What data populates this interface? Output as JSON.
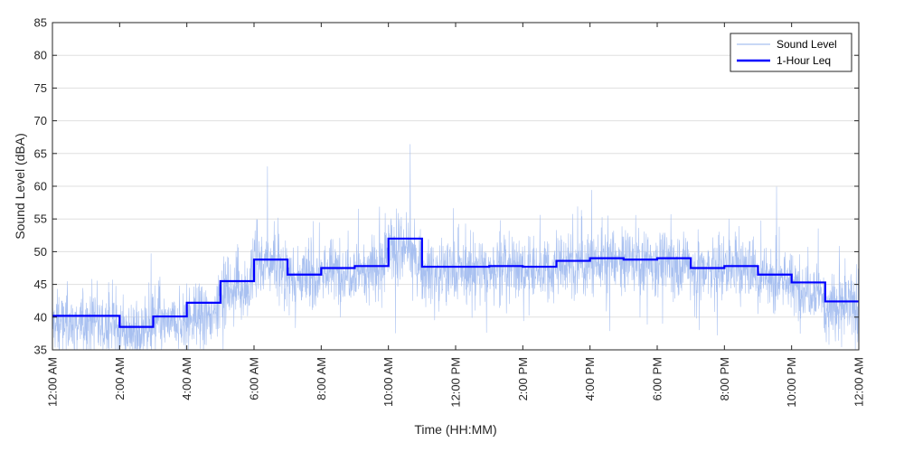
{
  "chart_data": {
    "type": "line",
    "title": "",
    "xlabel": "Time (HH:MM)",
    "ylabel": "Sound Level (dBA)",
    "ylim": [
      35,
      85
    ],
    "yticks": [
      35,
      40,
      45,
      50,
      55,
      60,
      65,
      70,
      75,
      80,
      85
    ],
    "xlim_hours": [
      0,
      24
    ],
    "xticks": [
      {
        "hour": 0,
        "label": "12:00 AM"
      },
      {
        "hour": 2,
        "label": "2:00 AM"
      },
      {
        "hour": 4,
        "label": "4:00 AM"
      },
      {
        "hour": 6,
        "label": "6:00 AM"
      },
      {
        "hour": 8,
        "label": "8:00 AM"
      },
      {
        "hour": 10,
        "label": "10:00 AM"
      },
      {
        "hour": 12,
        "label": "12:00 PM"
      },
      {
        "hour": 14,
        "label": "2:00 PM"
      },
      {
        "hour": 16,
        "label": "4:00 PM"
      },
      {
        "hour": 18,
        "label": "6:00 PM"
      },
      {
        "hour": 20,
        "label": "8:00 PM"
      },
      {
        "hour": 22,
        "label": "10:00 PM"
      },
      {
        "hour": 24,
        "label": "12:00 AM"
      }
    ],
    "grid": "horizontal",
    "legend": "top-right",
    "series": [
      {
        "name": "Sound Level",
        "color": "#a8c0f0",
        "style": "thin noisy line",
        "hourly_mean": [
          39,
          39,
          37.5,
          39,
          40,
          44,
          48,
          46,
          47,
          47.5,
          50,
          47,
          47,
          47.5,
          47,
          48,
          48.5,
          48.5,
          48.5,
          47,
          47.5,
          46,
          44.5,
          41.5
        ],
        "notable_peaks": [
          {
            "hour": 6.4,
            "value": 63
          },
          {
            "hour": 10.65,
            "value": 67
          },
          {
            "hour": 16.05,
            "value": 60
          },
          {
            "hour": 21.55,
            "value": 60.5
          }
        ]
      },
      {
        "name": "1-Hour Leq",
        "color": "#0000ff",
        "style": "step",
        "hours": [
          0,
          1,
          2,
          3,
          4,
          5,
          6,
          7,
          8,
          9,
          10,
          11,
          12,
          13,
          14,
          15,
          16,
          17,
          18,
          19,
          20,
          21,
          22,
          23
        ],
        "values": [
          40.2,
          40.2,
          38.5,
          40.1,
          42.2,
          45.5,
          48.8,
          46.5,
          47.5,
          47.8,
          52.0,
          47.7,
          47.7,
          47.8,
          47.7,
          48.6,
          49.0,
          48.8,
          49.0,
          47.5,
          47.8,
          46.5,
          45.3,
          42.4
        ]
      }
    ]
  }
}
